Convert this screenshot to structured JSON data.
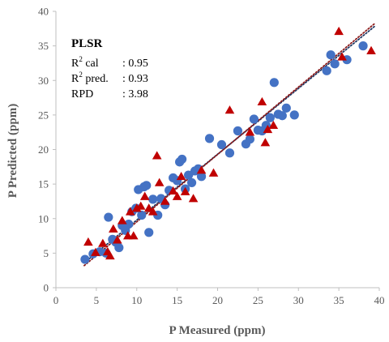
{
  "chart_data": {
    "type": "scatter",
    "title": "PLSR",
    "xlabel": "P Measured (ppm)",
    "ylabel": "P Predicted (ppm)",
    "xlim": [
      0,
      40
    ],
    "ylim": [
      0,
      40
    ],
    "x_ticks": [
      0,
      5,
      10,
      15,
      20,
      25,
      30,
      35,
      40
    ],
    "y_ticks": [
      0,
      5,
      10,
      15,
      20,
      25,
      30,
      35,
      40
    ],
    "grid": false,
    "legend": "none",
    "annotations": [
      {
        "label": "R",
        "sup": "2",
        "rest": " cal",
        "value": ": 0.95"
      },
      {
        "label": "R",
        "sup": "2",
        "rest": " pred.",
        "value": ": 0.93"
      },
      {
        "label": "RPD",
        "sup": "",
        "rest": "",
        "value": ": 3.98"
      }
    ],
    "series": [
      {
        "marker": "circle",
        "color": "#4472C4",
        "x": [
          3.6,
          4.6,
          5.4,
          6.2,
          6.5,
          7.0,
          7.4,
          7.8,
          8.2,
          8.6,
          9.0,
          9.4,
          9.9,
          10.2,
          10.6,
          10.9,
          11.2,
          11.5,
          12.0,
          12.6,
          13.0,
          13.5,
          14.0,
          14.5,
          15.0,
          15.3,
          15.6,
          16.0,
          16.4,
          16.8,
          17.2,
          17.6,
          18.0,
          19.0,
          20.5,
          21.5,
          22.5,
          23.5,
          24.0,
          24.5,
          25.0,
          25.5,
          26.0,
          26.5,
          27.0,
          27.5,
          28.0,
          28.5,
          29.5,
          33.5,
          34.0,
          34.5,
          36.0,
          38.0
        ],
        "y": [
          4.1,
          4.9,
          5.2,
          5.0,
          10.2,
          7.0,
          6.6,
          5.8,
          9.0,
          8.3,
          9.2,
          11.0,
          11.5,
          14.2,
          10.5,
          14.6,
          14.8,
          8.0,
          12.8,
          10.5,
          12.9,
          12.0,
          14.1,
          15.9,
          15.5,
          18.2,
          18.6,
          14.3,
          16.3,
          15.2,
          16.9,
          17.2,
          16.1,
          21.6,
          20.7,
          19.5,
          22.7,
          20.8,
          21.5,
          24.4,
          22.8,
          22.7,
          23.5,
          24.6,
          29.7,
          25.1,
          24.9,
          26.0,
          25.0,
          31.4,
          33.7,
          32.4,
          33.0,
          35.0
        ]
      },
      {
        "marker": "triangle",
        "color": "#C00000",
        "x": [
          4.0,
          4.9,
          5.8,
          6.4,
          6.7,
          7.1,
          7.6,
          8.2,
          8.9,
          9.2,
          9.6,
          10.0,
          10.5,
          11.0,
          11.5,
          12.0,
          12.5,
          12.8,
          13.5,
          14.5,
          15.0,
          15.5,
          16.0,
          17.0,
          18.0,
          19.5,
          21.5,
          24.0,
          25.5,
          25.9,
          26.2,
          26.9,
          35.0,
          35.4,
          39.0
        ],
        "y": [
          6.6,
          5.1,
          6.4,
          5.2,
          4.6,
          8.5,
          6.9,
          9.7,
          7.5,
          11.0,
          7.5,
          11.5,
          11.8,
          13.2,
          11.5,
          11.0,
          19.1,
          15.2,
          12.5,
          14.0,
          13.2,
          16.1,
          13.9,
          12.9,
          17.0,
          16.6,
          25.7,
          22.5,
          26.9,
          21.0,
          22.9,
          23.5,
          37.1,
          33.4,
          34.3
        ]
      }
    ],
    "trendlines": [
      {
        "style": "dotted",
        "color": "#1F3864",
        "x": [
          3.5,
          39.5
        ],
        "y": [
          3.6,
          37.9
        ]
      },
      {
        "style": "dotted",
        "color": "#8B1A1A",
        "x": [
          3.5,
          39.5
        ],
        "y": [
          3.2,
          38.3
        ]
      }
    ]
  }
}
